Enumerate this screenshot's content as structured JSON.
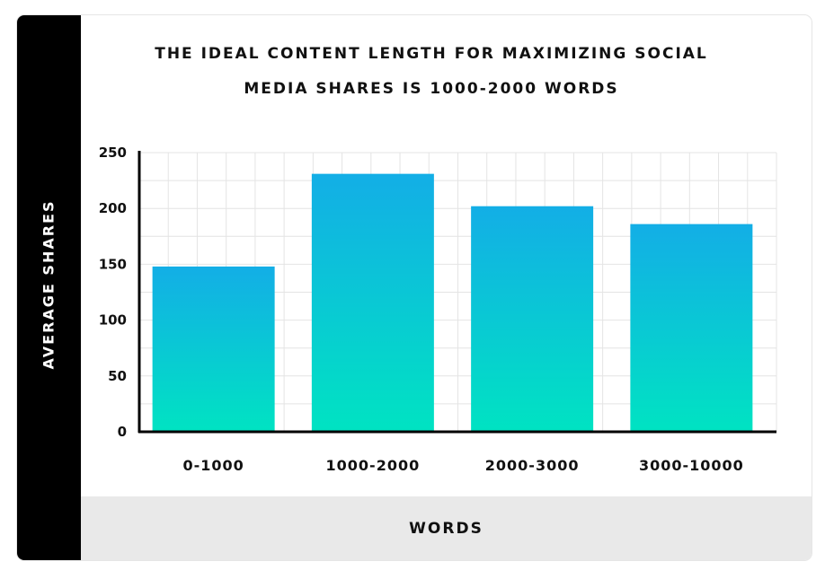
{
  "chart_data": {
    "type": "bar",
    "title_lines": [
      "THE IDEAL CONTENT LENGTH FOR MAXIMIZING SOCIAL",
      "MEDIA SHARES IS 1000-2000 WORDS"
    ],
    "xlabel": "WORDS",
    "ylabel": "AVERAGE SHARES",
    "categories": [
      "0-1000",
      "1000-2000",
      "2000-3000",
      "3000-10000"
    ],
    "values": [
      148,
      231,
      202,
      186
    ],
    "ylim": [
      0,
      250
    ],
    "yticks": [
      0,
      50,
      100,
      150,
      200,
      250
    ],
    "grid": true,
    "bar_gradient": {
      "top": "#13aee6",
      "bottom": "#00e3c2"
    }
  }
}
